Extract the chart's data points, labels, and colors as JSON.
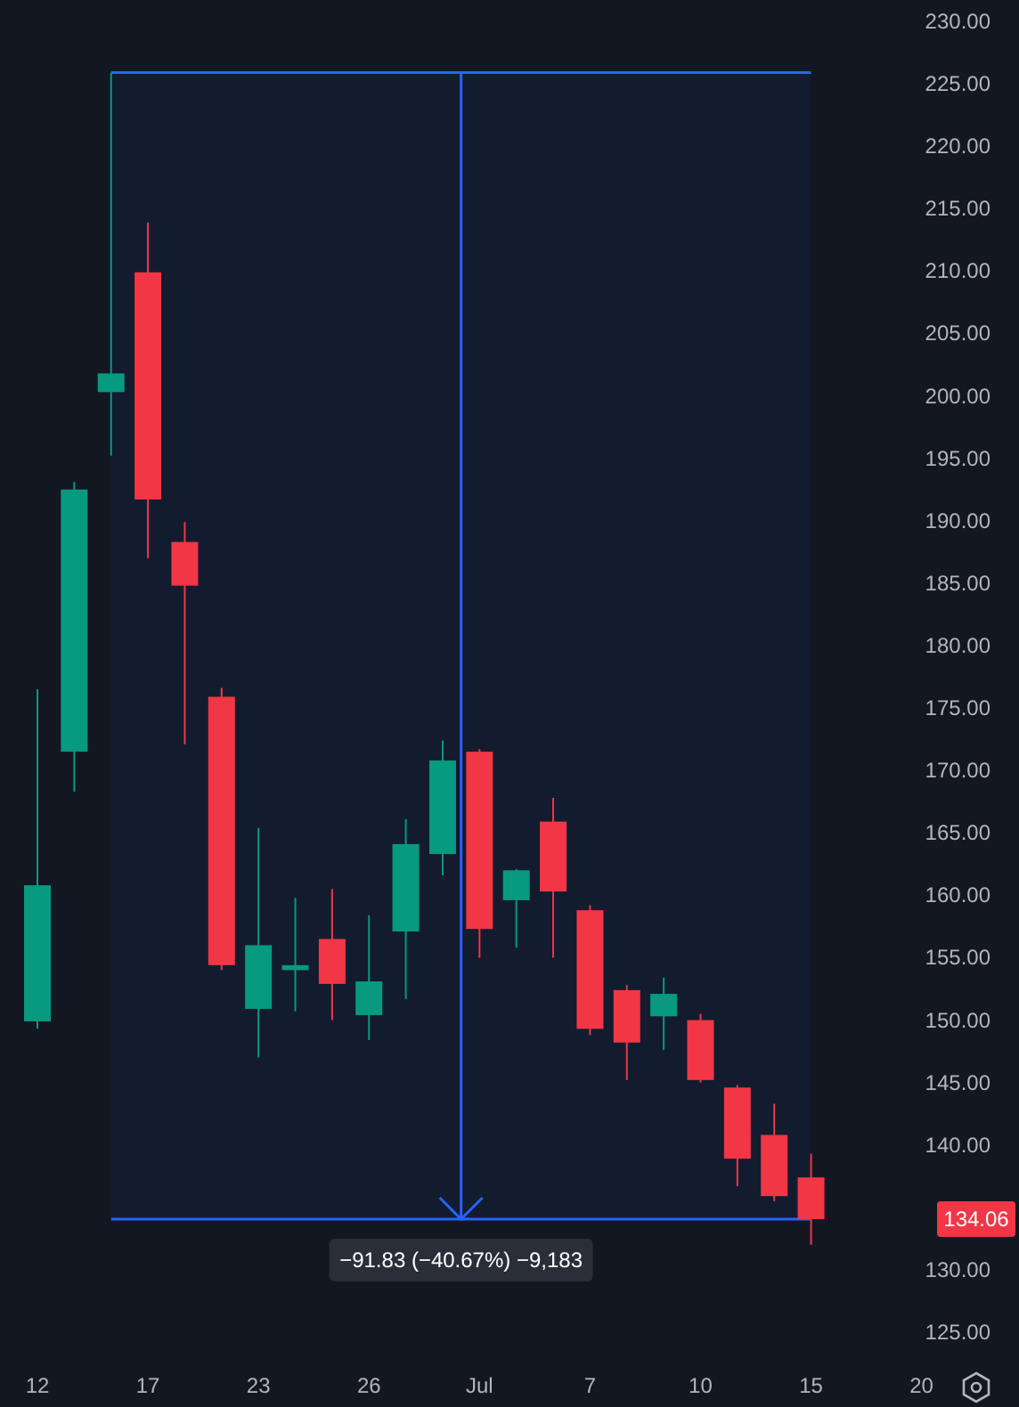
{
  "chart_data": {
    "type": "candlestick",
    "categories": [
      "12",
      null,
      null,
      "17",
      null,
      null,
      "23",
      null,
      null,
      "26",
      null,
      null,
      "Jul",
      null,
      null,
      "7",
      null,
      null,
      "10",
      null,
      null,
      "15",
      null,
      null,
      "20"
    ],
    "ohlc": [
      [
        149.9,
        176.5,
        149.3,
        160.8
      ],
      [
        171.5,
        193.1,
        168.3,
        192.5
      ],
      [
        200.3,
        225.89,
        195.2,
        201.8
      ],
      [
        209.9,
        213.9,
        187.0,
        191.7
      ],
      [
        188.3,
        189.9,
        172.1,
        184.8
      ],
      [
        175.9,
        176.6,
        154.0,
        154.4
      ],
      [
        150.9,
        165.4,
        147.0,
        156.0
      ],
      [
        154.0,
        159.8,
        150.7,
        154.4
      ],
      [
        156.5,
        160.5,
        150.0,
        152.9
      ],
      [
        150.4,
        158.4,
        148.4,
        153.1
      ],
      [
        157.1,
        166.1,
        151.7,
        164.1
      ],
      [
        163.3,
        172.4,
        161.6,
        170.8
      ],
      [
        171.5,
        171.7,
        155.0,
        157.3
      ],
      [
        159.6,
        162.1,
        155.8,
        162.0
      ],
      [
        165.9,
        167.8,
        155.0,
        160.3
      ],
      [
        158.8,
        159.2,
        148.8,
        149.3
      ],
      [
        152.4,
        152.8,
        145.2,
        148.2
      ],
      [
        150.3,
        153.4,
        147.6,
        152.1
      ],
      [
        150.0,
        150.5,
        145.0,
        145.2
      ],
      [
        144.6,
        144.8,
        136.7,
        138.9
      ],
      [
        140.8,
        143.3,
        135.5,
        135.9
      ],
      [
        137.4,
        139.3,
        132.0,
        134.06
      ],
      null,
      null,
      null
    ],
    "colors": [
      "#089981",
      "#089981",
      "#089981",
      "#f23645",
      "#f23645",
      "#f23645",
      "#089981",
      "#089981",
      "#f23645",
      "#089981",
      "#089981",
      "#089981",
      "#f23645",
      "#089981",
      "#f23645",
      "#f23645",
      "#f23645",
      "#089981",
      "#f23645",
      "#f23645",
      "#f23645",
      "#f23645",
      null,
      null,
      null
    ],
    "ylim": [
      125,
      230
    ],
    "ref_lines": [
      {
        "axis": "y",
        "value": 225.89,
        "color": "#2962ff"
      },
      {
        "axis": "y",
        "value": 134.06,
        "color": "#2962ff"
      }
    ],
    "yticks": [
      {
        "value": 125,
        "label": "125.00"
      },
      {
        "value": 130,
        "label": "130.00"
      },
      {
        "value": 140,
        "label": "140.00"
      },
      {
        "value": 145,
        "label": "145.00"
      },
      {
        "value": 150,
        "label": "150.00"
      },
      {
        "value": 155,
        "label": "155.00"
      },
      {
        "value": 160,
        "label": "160.00"
      },
      {
        "value": 165,
        "label": "165.00"
      },
      {
        "value": 170,
        "label": "170.00"
      },
      {
        "value": 175,
        "label": "175.00"
      },
      {
        "value": 180,
        "label": "180.00"
      },
      {
        "value": 185,
        "label": "185.00"
      },
      {
        "value": 190,
        "label": "190.00"
      },
      {
        "value": 195,
        "label": "195.00"
      },
      {
        "value": 200,
        "label": "200.00"
      },
      {
        "value": 205,
        "label": "205.00"
      },
      {
        "value": 210,
        "label": "210.00"
      },
      {
        "value": 215,
        "label": "215.00"
      },
      {
        "value": 220,
        "label": "220.00"
      },
      {
        "value": 225,
        "label": "225.00"
      },
      {
        "value": 230,
        "label": "230.00"
      }
    ],
    "bands": [
      {
        "axis": "y",
        "from": 134.06,
        "to": 225.89,
        "label": "−91.83 (−40.67%) −9,183",
        "color": "#2962ff"
      }
    ],
    "annotations": [
      {
        "text": "134.06",
        "y": 134.06
      }
    ]
  }
}
